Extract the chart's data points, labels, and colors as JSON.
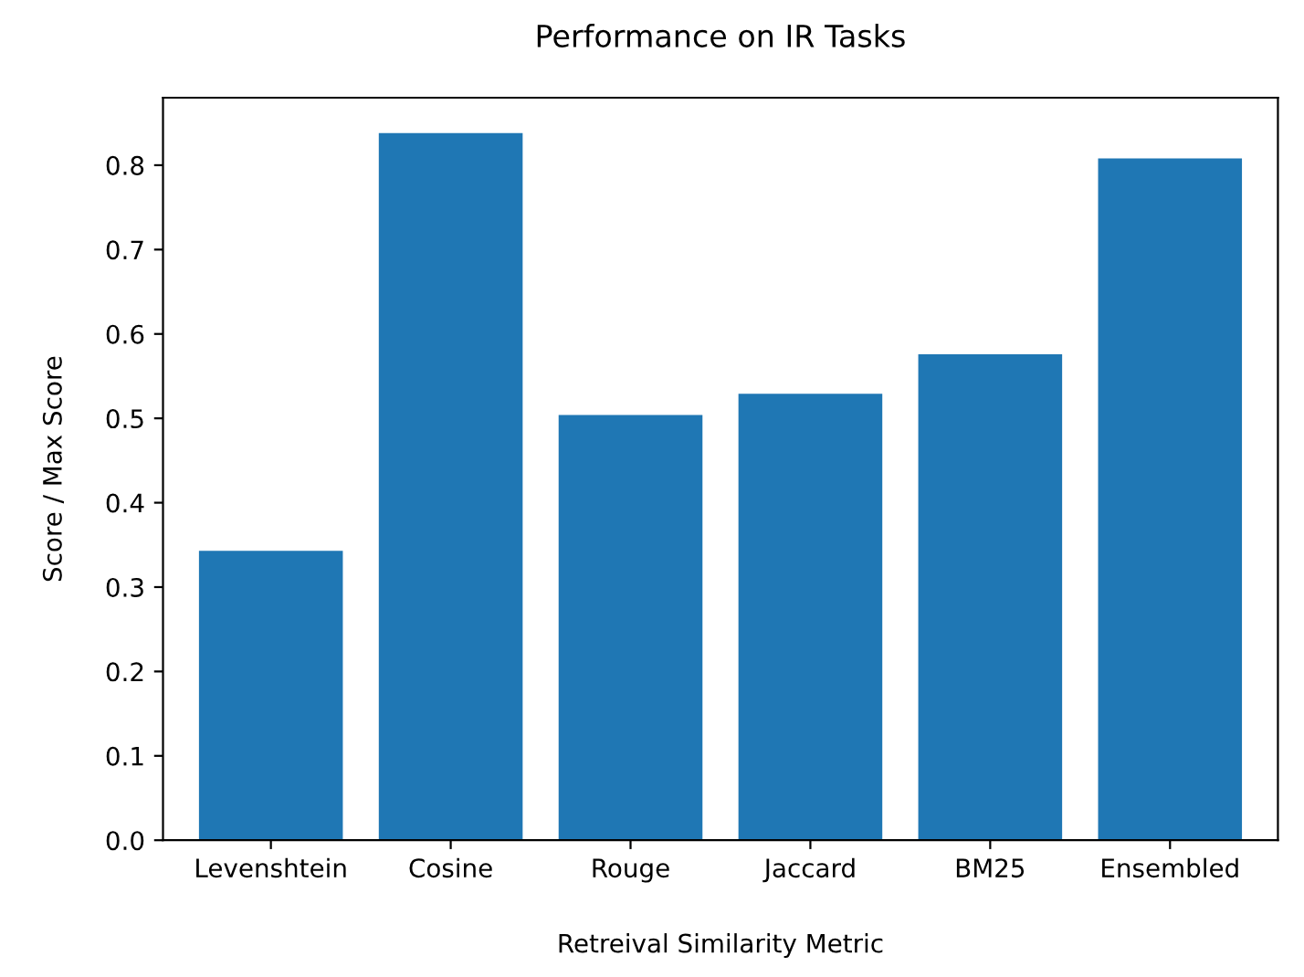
{
  "chart_data": {
    "type": "bar",
    "title": "Performance on IR Tasks",
    "xlabel": "Retreival Similarity Metric",
    "ylabel": "Score / Max Score",
    "categories": [
      "Levenshtein",
      "Cosine",
      "Rouge",
      "Jaccard",
      "BM25",
      "Ensembled"
    ],
    "values": [
      0.343,
      0.838,
      0.504,
      0.529,
      0.576,
      0.808
    ],
    "color": "#1f77b4",
    "ylim": [
      0,
      0.88
    ],
    "yticks": [
      {
        "value": 0,
        "label": "0.0"
      },
      0.1,
      0.2,
      0.3,
      0.4,
      0.5,
      0.6,
      0.7,
      0.8
    ],
    "grid": false
  }
}
